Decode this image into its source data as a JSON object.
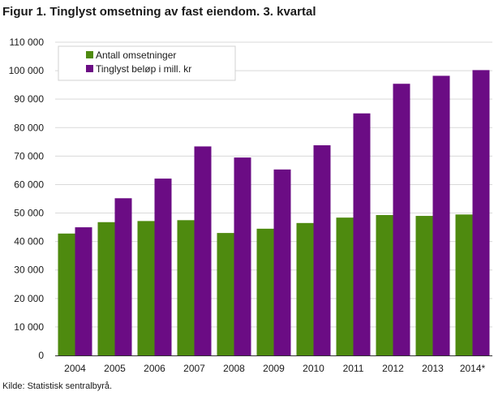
{
  "title": "Figur 1. Tinglyst omsetning av fast eiendom. 3. kvartal",
  "source": "Kilde: Statistisk sentralbyrå.",
  "colors": {
    "series1": "#4e8a0f",
    "series2": "#6b0c84",
    "grid": "#d9d9d9",
    "axis": "#555555"
  },
  "chart_data": {
    "type": "bar",
    "title": "Figur 1. Tinglyst omsetning av fast eiendom. 3. kvartal",
    "xlabel": "",
    "ylabel": "",
    "ylim": [
      0,
      110000
    ],
    "yticks": [
      0,
      10000,
      20000,
      30000,
      40000,
      50000,
      60000,
      70000,
      80000,
      90000,
      100000,
      110000
    ],
    "ytick_labels": [
      "0",
      "10 000",
      "20 000",
      "30 000",
      "40 000",
      "50 000",
      "60 000",
      "70 000",
      "80 000",
      "90 000",
      "100 000",
      "110 000"
    ],
    "categories": [
      "2004",
      "2005",
      "2006",
      "2007",
      "2008",
      "2009",
      "2010",
      "2011",
      "2012",
      "2013",
      "2014*"
    ],
    "series": [
      {
        "name": "Antall omsetninger",
        "color": "#4e8a0f",
        "values": [
          42800,
          46800,
          47200,
          47500,
          43000,
          44500,
          46500,
          48400,
          49300,
          49000,
          49500
        ]
      },
      {
        "name": "Tinglyst beløp i mill. kr",
        "color": "#6b0c84",
        "values": [
          45000,
          55200,
          62100,
          73400,
          69500,
          65300,
          73800,
          85000,
          95400,
          98200,
          100200
        ]
      }
    ],
    "grid": true,
    "legend_position": "top-left"
  }
}
